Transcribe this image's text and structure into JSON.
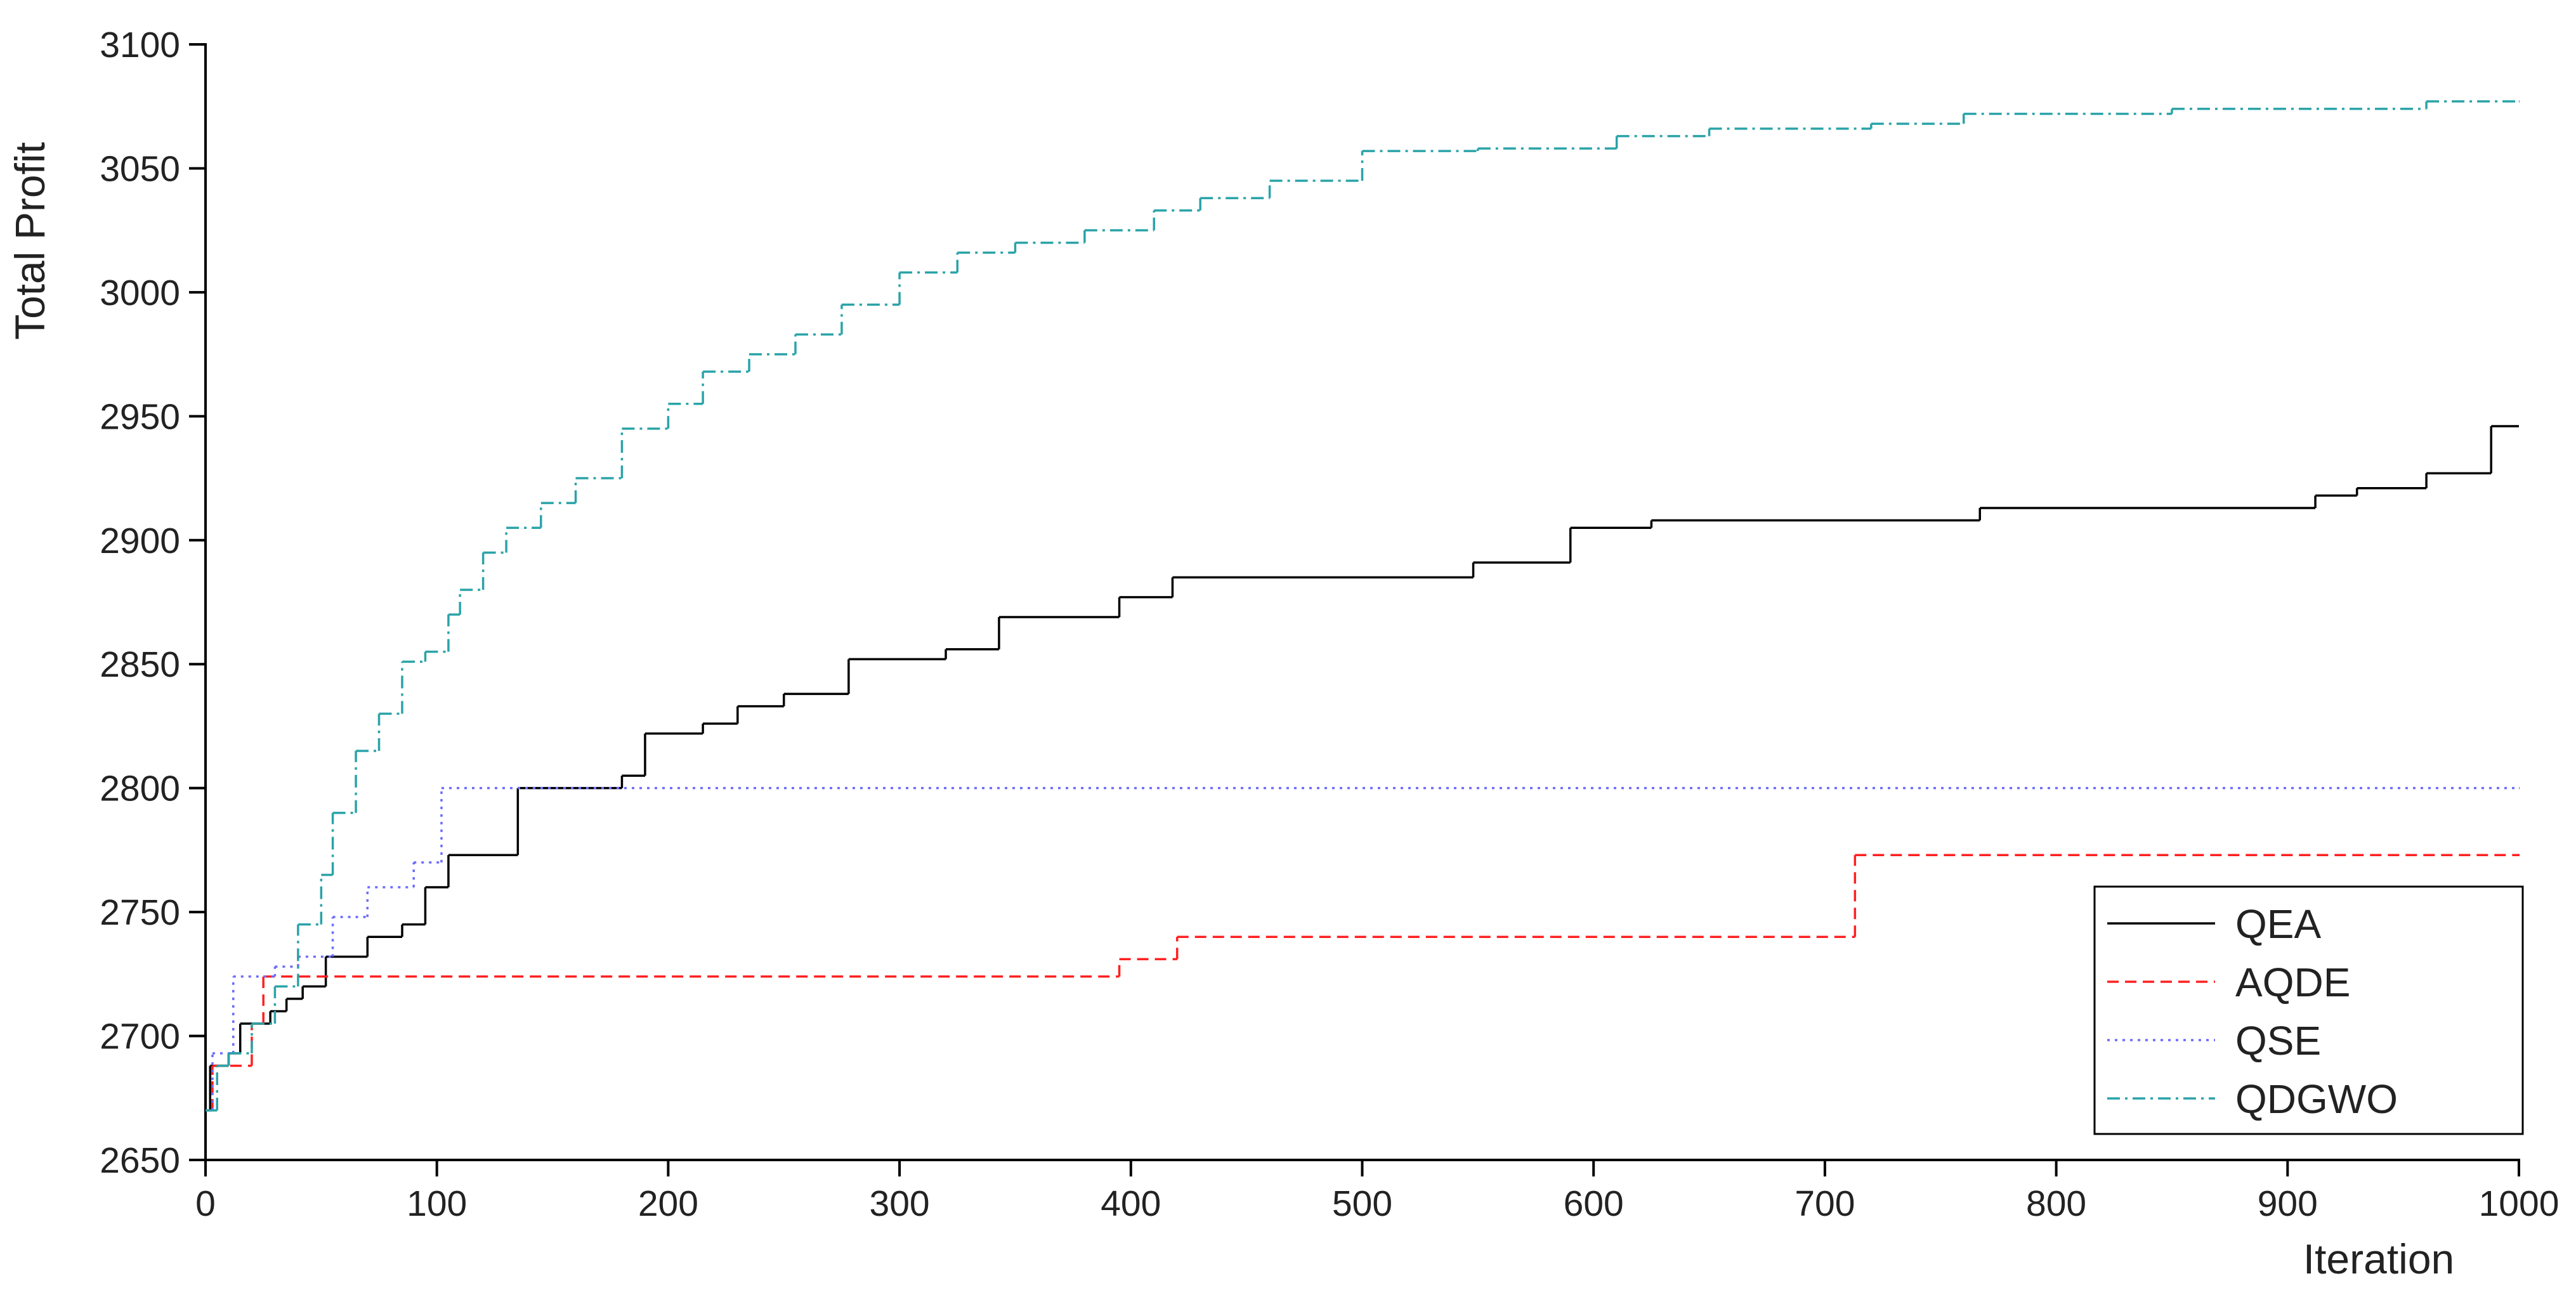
{
  "chart_data": {
    "type": "line",
    "y_label": "Total Profit",
    "x_label": "Iteration",
    "xlim": [
      0,
      1000
    ],
    "ylim": [
      2650,
      3100
    ],
    "xticks": [
      0,
      100,
      200,
      300,
      400,
      500,
      600,
      700,
      800,
      900,
      1000
    ],
    "yticks": [
      2650,
      2700,
      2750,
      2800,
      2850,
      2900,
      2950,
      3000,
      3050,
      3100
    ],
    "step": true,
    "legend": "lower right",
    "series": [
      {
        "name": "QEA",
        "color": "#000000",
        "dash": "solid",
        "x": [
          0,
          2,
          10,
          15,
          28,
          35,
          42,
          52,
          70,
          85,
          95,
          105,
          135,
          180,
          190,
          215,
          230,
          250,
          278,
          320,
          343,
          395,
          418,
          548,
          590,
          625,
          767,
          912,
          930,
          960,
          988,
          1000
        ],
        "values": [
          2670,
          2688,
          2693,
          2705,
          2710,
          2715,
          2720,
          2732,
          2740,
          2745,
          2760,
          2773,
          2800,
          2805,
          2822,
          2826,
          2833,
          2838,
          2852,
          2856,
          2869,
          2877,
          2885,
          2891,
          2905,
          2908,
          2913,
          2918,
          2921,
          2927,
          2946,
          2946
        ]
      },
      {
        "name": "AQDE",
        "color": "#ff2020",
        "dash": "dashed",
        "x": [
          0,
          3,
          20,
          25,
          395,
          420,
          713,
          1000
        ],
        "values": [
          2670,
          2688,
          2705,
          2724,
          2731,
          2740,
          2773,
          2773
        ]
      },
      {
        "name": "QSE",
        "color": "#6b6bff",
        "dash": "dotted",
        "x": [
          0,
          3,
          12,
          30,
          40,
          55,
          70,
          90,
          102,
          1000
        ],
        "values": [
          2670,
          2693,
          2724,
          2728,
          2732,
          2748,
          2760,
          2770,
          2800,
          2800
        ]
      },
      {
        "name": "QDGWO",
        "color": "#2aa3a8",
        "dash": "dashdot",
        "x": [
          0,
          5,
          10,
          20,
          30,
          40,
          50,
          55,
          65,
          75,
          85,
          95,
          105,
          110,
          120,
          130,
          145,
          160,
          180,
          200,
          215,
          235,
          255,
          275,
          300,
          325,
          350,
          380,
          410,
          430,
          460,
          500,
          550,
          610,
          650,
          720,
          760,
          850,
          960,
          1000
        ],
        "values": [
          2670,
          2688,
          2693,
          2705,
          2720,
          2745,
          2765,
          2790,
          2815,
          2830,
          2851,
          2855,
          2870,
          2880,
          2895,
          2905,
          2915,
          2925,
          2945,
          2955,
          2968,
          2975,
          2983,
          2995,
          3008,
          3016,
          3020,
          3025,
          3033,
          3038,
          3045,
          3057,
          3058,
          3063,
          3066,
          3068,
          3072,
          3074,
          3077,
          3077
        ]
      }
    ]
  }
}
